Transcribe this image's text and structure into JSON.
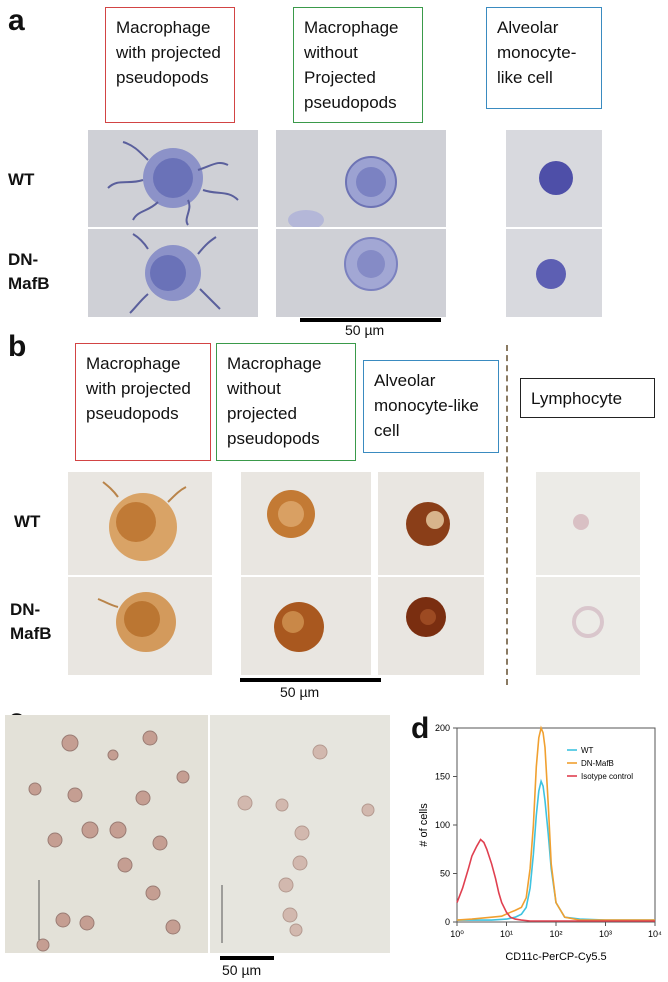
{
  "panel_a": {
    "label": "a",
    "headers": [
      {
        "text": "Macrophage with projected pseudopods",
        "color": "#d24444"
      },
      {
        "text": "Macrophage without Projected pseudopods",
        "color": "#3a9a4a"
      },
      {
        "text": "Alveolar monocyte-like cell",
        "color": "#3a8bc0"
      }
    ],
    "rows": [
      "WT",
      "DN-MafB"
    ],
    "scale_label": "50 µm"
  },
  "panel_b": {
    "label": "b",
    "headers": [
      {
        "text": "Macrophage with projected pseudopods",
        "color": "#d24444"
      },
      {
        "text": "Macrophage without projected pseudopods",
        "color": "#3a9a4a"
      },
      {
        "text": "Alveolar monocyte-like cell",
        "color": "#3a8bc0"
      },
      {
        "text": "Lymphocyte",
        "color": "#222222"
      }
    ],
    "rows": [
      "WT",
      "DN-MafB"
    ],
    "scale_label": "50 µm"
  },
  "panel_c": {
    "label": "c",
    "scale_label": "50 µm"
  },
  "panel_d": {
    "label": "d"
  },
  "chart_data": {
    "type": "line",
    "title": "",
    "xlabel": "CD11c-PerCP-Cy5.5",
    "ylabel": "# of cells",
    "xscale": "log",
    "xlim": [
      1,
      10000
    ],
    "ylim": [
      0,
      200
    ],
    "yticks": [
      0,
      50,
      100,
      150,
      200
    ],
    "xtick_labels": [
      "10⁰",
      "10¹",
      "10²",
      "10³",
      "10⁴"
    ],
    "legend_position": "top-right",
    "series": [
      {
        "name": "WT",
        "color": "#3fc3e0",
        "x": [
          1,
          2,
          5,
          10,
          15,
          20,
          25,
          30,
          35,
          40,
          45,
          50,
          55,
          60,
          70,
          80,
          100,
          150,
          300,
          1000,
          5000,
          10000
        ],
        "y": [
          2,
          2,
          2,
          3,
          5,
          8,
          15,
          35,
          70,
          110,
          135,
          145,
          140,
          125,
          90,
          55,
          20,
          5,
          3,
          2,
          2,
          2
        ]
      },
      {
        "name": "DN-MafB",
        "color": "#f0a030",
        "x": [
          1,
          2,
          5,
          8,
          12,
          15,
          20,
          25,
          30,
          35,
          40,
          45,
          50,
          55,
          60,
          70,
          80,
          100,
          150,
          300,
          1000,
          5000,
          10000
        ],
        "y": [
          2,
          3,
          5,
          6,
          10,
          12,
          15,
          25,
          55,
          100,
          160,
          190,
          200,
          195,
          180,
          120,
          60,
          20,
          5,
          2,
          2,
          2,
          2
        ]
      },
      {
        "name": "Isotype control",
        "color": "#e04050",
        "x": [
          1,
          1.3,
          1.7,
          2,
          2.5,
          3,
          3.5,
          4,
          5,
          6,
          7,
          8,
          10,
          12,
          15,
          20,
          30,
          50,
          100,
          1000,
          10000
        ],
        "y": [
          20,
          35,
          55,
          68,
          78,
          85,
          82,
          75,
          60,
          45,
          30,
          20,
          10,
          5,
          3,
          2,
          1,
          1,
          1,
          1,
          1
        ]
      }
    ]
  }
}
